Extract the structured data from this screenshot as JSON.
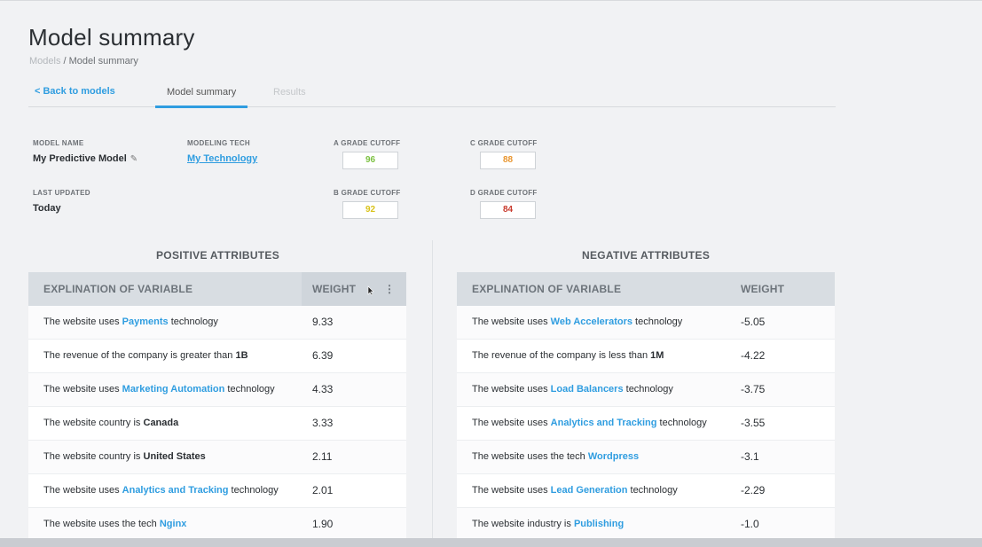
{
  "header": {
    "title": "Model summary",
    "breadcrumb": {
      "parent": "Models",
      "separator": " / ",
      "current": "Model summary"
    }
  },
  "tabs": {
    "back_label": "< Back to models",
    "items": [
      {
        "label": "Model summary",
        "active": true
      },
      {
        "label": "Results",
        "active": false
      }
    ]
  },
  "model": {
    "name_label": "MODEL NAME",
    "name_value": "My Predictive Model",
    "tech_label": "MODELING TECH",
    "tech_value": "My Technology",
    "updated_label": "LAST UPDATED",
    "updated_value": "Today"
  },
  "cutoffs": {
    "a": {
      "label": "A GRADE CUTOFF",
      "value": "96",
      "color": "#7cc142"
    },
    "b": {
      "label": "B GRADE CUTOFF",
      "value": "92",
      "color": "#d9c21a"
    },
    "c": {
      "label": "C GRADE CUTOFF",
      "value": "88",
      "color": "#e8952e"
    },
    "d": {
      "label": "D GRADE CUTOFF",
      "value": "84",
      "color": "#c83a2d"
    }
  },
  "positive": {
    "title": "POSITIVE ATTRIBUTES",
    "col_variable": "EXPLINATION OF VARIABLE",
    "col_weight": "WEIGHT",
    "kebab_icon": "kebab-icon",
    "rows": [
      {
        "pre": "The website uses ",
        "hl": "Payments",
        "post": " technology",
        "style": "hl",
        "weight": "9.33"
      },
      {
        "pre": "The revenue of the company is greater than ",
        "hl": "1B",
        "post": "",
        "style": "bold",
        "weight": "6.39"
      },
      {
        "pre": "The website uses ",
        "hl": "Marketing Automation",
        "post": " technology",
        "style": "hl",
        "weight": "4.33"
      },
      {
        "pre": "The website country is ",
        "hl": "Canada",
        "post": "",
        "style": "bold",
        "weight": "3.33"
      },
      {
        "pre": "The website country is ",
        "hl": "United States",
        "post": "",
        "style": "bold",
        "weight": "2.11"
      },
      {
        "pre": "The website uses ",
        "hl": "Analytics and Tracking",
        "post": " technology",
        "style": "hl",
        "weight": "2.01"
      },
      {
        "pre": "The website uses the tech ",
        "hl": "Nginx",
        "post": "",
        "style": "hl",
        "weight": "1.90"
      }
    ]
  },
  "negative": {
    "title": "NEGATIVE ATTRIBUTES",
    "col_variable": "EXPLINATION OF VARIABLE",
    "col_weight": "WEIGHT",
    "rows": [
      {
        "pre": "The website uses ",
        "hl": "Web Accelerators",
        "post": " technology",
        "style": "hl",
        "weight": "-5.05"
      },
      {
        "pre": "The revenue of the company is less than ",
        "hl": "1M",
        "post": "",
        "style": "bold",
        "weight": "-4.22"
      },
      {
        "pre": "The website uses ",
        "hl": "Load Balancers",
        "post": " technology",
        "style": "hl",
        "weight": "-3.75"
      },
      {
        "pre": "The website uses ",
        "hl": "Analytics and Tracking",
        "post": " technology",
        "style": "hl",
        "weight": "-3.55"
      },
      {
        "pre": "The website uses the tech ",
        "hl": "Wordpress",
        "post": "",
        "style": "hl",
        "weight": "-3.1"
      },
      {
        "pre": "The website uses ",
        "hl": "Lead Generation",
        "post": " technology",
        "style": "hl",
        "weight": "-2.29"
      },
      {
        "pre": "The website industry is ",
        "hl": "Publishing",
        "post": "",
        "style": "hl",
        "weight": "-1.0"
      }
    ]
  },
  "colors": {
    "accent": "#2f9de0",
    "header_bg": "#d8dde2"
  }
}
